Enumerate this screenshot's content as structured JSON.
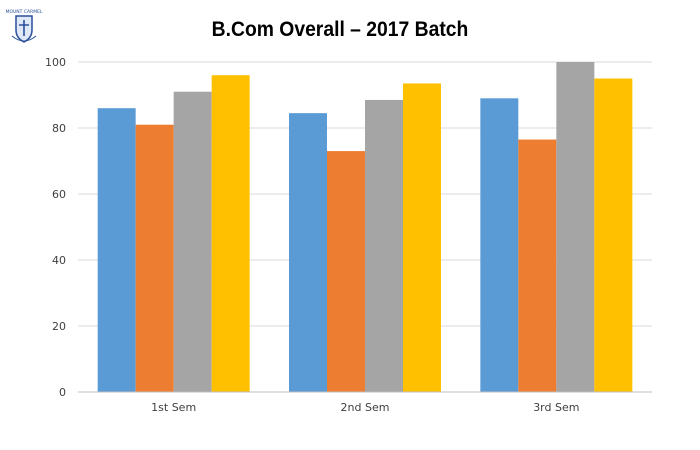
{
  "logo_text": "MOUNT CARMEL",
  "chart_data": {
    "type": "bar",
    "title": "B.Com Overall – 2017 Batch",
    "xlabel": "",
    "ylabel": "",
    "categories": [
      "1st Sem",
      "2nd Sem",
      "3rd Sem"
    ],
    "series": [
      {
        "values": [
          86,
          84.5,
          89
        ],
        "color": "#5B9BD5"
      },
      {
        "values": [
          81,
          73,
          76.5
        ],
        "color": "#ED7D31"
      },
      {
        "values": [
          91,
          88.5,
          100
        ],
        "color": "#A5A5A5"
      },
      {
        "values": [
          96,
          93.5,
          95
        ],
        "color": "#FFC000"
      }
    ],
    "ylim": [
      0,
      100
    ],
    "yticks": [
      0,
      20,
      40,
      60,
      80,
      100
    ],
    "grid": true,
    "legend": "none"
  }
}
